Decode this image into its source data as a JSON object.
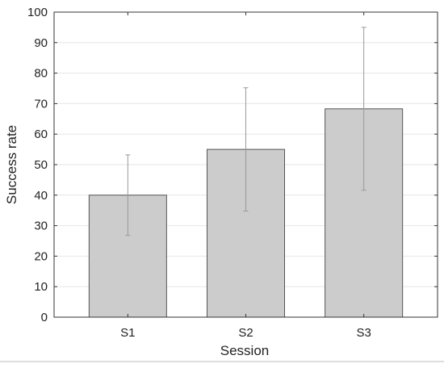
{
  "chart_data": {
    "type": "bar",
    "categories": [
      "S1",
      "S2",
      "S3"
    ],
    "values": [
      40,
      55,
      68.3
    ],
    "error_bars": [
      {
        "low": 26.8,
        "high": 53.2
      },
      {
        "low": 34.8,
        "high": 75.2
      },
      {
        "low": 41.6,
        "high": 95.0
      }
    ],
    "title": "",
    "xlabel": "Session",
    "ylabel": "Success rate",
    "ylim": [
      0,
      100
    ],
    "yticks": [
      0,
      10,
      20,
      30,
      40,
      50,
      60,
      70,
      80,
      90,
      100
    ],
    "grid": true,
    "legend": "none",
    "colors": {
      "bar_fill": "#cccccc",
      "bar_stroke": "#555555",
      "error_bar": "#999999",
      "grid": "#e6e6e6",
      "axis": "#333333"
    }
  }
}
